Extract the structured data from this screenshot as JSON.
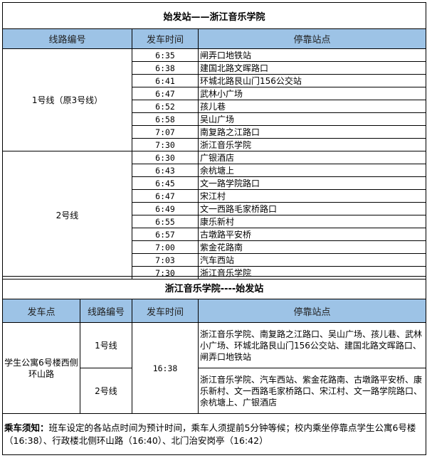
{
  "outbound": {
    "title": "始发站——浙江音乐学院",
    "headers": [
      "线路编号",
      "发车时间",
      "停靠站点"
    ],
    "routes": [
      {
        "name": "1号线（原3号线）",
        "stops": [
          {
            "time": "6:35",
            "stop": "闸弄口地铁站"
          },
          {
            "time": "6:38",
            "stop": "建国北路文晖路口"
          },
          {
            "time": "6:41",
            "stop": "环城北路艮山门156公交站"
          },
          {
            "time": "6:47",
            "stop": "武林小广场"
          },
          {
            "time": "6:52",
            "stop": "孩儿巷"
          },
          {
            "time": "6:58",
            "stop": "吴山广场"
          },
          {
            "time": "7:07",
            "stop": "南复路之江路口"
          },
          {
            "time": "7:30",
            "stop": "浙江音乐学院"
          }
        ]
      },
      {
        "name": "2号线",
        "stops": [
          {
            "time": "6:30",
            "stop": "广银酒店"
          },
          {
            "time": "6:43",
            "stop": "余杭塘上"
          },
          {
            "time": "6:45",
            "stop": "文一路学院路口"
          },
          {
            "time": "6:47",
            "stop": "宋江村"
          },
          {
            "time": "6:49",
            "stop": "文一西路毛家桥路口"
          },
          {
            "time": "6:55",
            "stop": "康乐新村"
          },
          {
            "time": "6:57",
            "stop": "古墩路平安桥"
          },
          {
            "time": "7:00",
            "stop": "紫金花路南"
          },
          {
            "time": "7:03",
            "stop": "汽车西站"
          },
          {
            "time": "7:30",
            "stop": "浙江音乐学院"
          }
        ]
      }
    ]
  },
  "return": {
    "title": "浙江音乐学院----始发站",
    "headers": [
      "发车点",
      "线路编号",
      "发车时间",
      "停靠站点"
    ],
    "departure_point": "学生公寓6号楼西侧环山路",
    "time": "16:38",
    "routes": [
      {
        "name": "1号线",
        "stops": "浙江音乐学院、南复路之江路口、吴山广场、孩儿巷、武林小广场、环城北路艮山门156公交站、建国北路文晖路口、闸弄口地铁站"
      },
      {
        "name": "2号线",
        "stops": "浙江音乐学院、汽车西站、紫金花路南、古墩路平安桥、康乐新村、文一西路毛家桥路口、宋江村、文一路学院路口、余杭塘上、广银酒店"
      }
    ]
  },
  "notice": {
    "label": "乘车须知：",
    "text": "班车设定的各站点时间为预计时间，乘车人须提前5分钟等候；校内乘坐停靠点学生公寓6号楼（16:38）、行政楼北侧环山路（16:40）、北门治安岗亭（16:42）"
  }
}
